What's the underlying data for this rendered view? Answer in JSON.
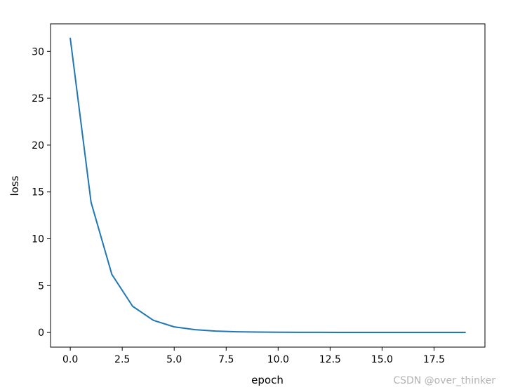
{
  "chart_data": {
    "type": "line",
    "title": "",
    "xlabel": "epoch",
    "ylabel": "loss",
    "xlim": [
      -0.95,
      19.95
    ],
    "ylim": [
      -1.56,
      32.94
    ],
    "xticks": [
      0.0,
      2.5,
      5.0,
      7.5,
      10.0,
      12.5,
      15.0,
      17.5
    ],
    "xtick_labels": [
      "0.0",
      "2.5",
      "5.0",
      "7.5",
      "10.0",
      "12.5",
      "15.0",
      "17.5"
    ],
    "yticks": [
      0,
      5,
      10,
      15,
      20,
      25,
      30
    ],
    "ytick_labels": [
      "0",
      "5",
      "10",
      "15",
      "20",
      "25",
      "30"
    ],
    "grid": false,
    "legend": "none",
    "series": [
      {
        "color": "#1f77b4",
        "x": [
          0,
          1,
          2,
          3,
          4,
          5,
          6,
          7,
          8,
          9,
          10,
          11,
          12,
          13,
          14,
          15,
          16,
          17,
          18,
          19
        ],
        "y": [
          31.4,
          13.9,
          6.2,
          2.8,
          1.3,
          0.6,
          0.3,
          0.15,
          0.08,
          0.05,
          0.03,
          0.02,
          0.02,
          0.01,
          0.01,
          0.01,
          0.01,
          0.01,
          0.01,
          0.01
        ]
      }
    ]
  },
  "watermark": "CSDN @over_thinker"
}
